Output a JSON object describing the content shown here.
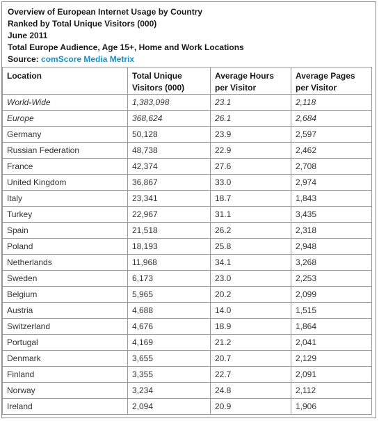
{
  "header": {
    "title": "Overview of European Internet Usage by Country",
    "subtitle": "Ranked by Total Unique Visitors (000)",
    "date": "June 2011",
    "audience": "Total Europe Audience, Age 15+, Home and Work Locations",
    "source_label": "Source: ",
    "source_name": "comScore Media Metrix"
  },
  "table": {
    "columns": [
      "Location",
      "Total Unique Visitors (000)",
      "Average Hours per Visitor",
      "Average Pages per Visitor"
    ],
    "rows": [
      {
        "location": "World-Wide",
        "visitors": "1,383,098",
        "hours": "23.1",
        "pages": "2,118",
        "italic": true
      },
      {
        "location": "Europe",
        "visitors": "368,624",
        "hours": "26.1",
        "pages": "2,684",
        "italic": true
      },
      {
        "location": "Germany",
        "visitors": "50,128",
        "hours": "23.9",
        "pages": "2,597"
      },
      {
        "location": "Russian Federation",
        "visitors": "48,738",
        "hours": "22.9",
        "pages": "2,462"
      },
      {
        "location": "France",
        "visitors": "42,374",
        "hours": "27.6",
        "pages": "2,708"
      },
      {
        "location": "United Kingdom",
        "visitors": "36,867",
        "hours": "33.0",
        "pages": "2,974"
      },
      {
        "location": "Italy",
        "visitors": "23,341",
        "hours": "18.7",
        "pages": "1,843"
      },
      {
        "location": "Turkey",
        "visitors": "22,967",
        "hours": "31.1",
        "pages": "3,435"
      },
      {
        "location": "Spain",
        "visitors": "21,518",
        "hours": "26.2",
        "pages": "2,318"
      },
      {
        "location": "Poland",
        "visitors": "18,193",
        "hours": "25.8",
        "pages": "2,948"
      },
      {
        "location": "Netherlands",
        "visitors": "11,968",
        "hours": "34.1",
        "pages": "3,268"
      },
      {
        "location": "Sweden",
        "visitors": "6,173",
        "hours": "23.0",
        "pages": "2,253"
      },
      {
        "location": "Belgium",
        "visitors": "5,965",
        "hours": "20.2",
        "pages": "2,099"
      },
      {
        "location": "Austria",
        "visitors": "4,688",
        "hours": "14.0",
        "pages": "1,515"
      },
      {
        "location": "Switzerland",
        "visitors": "4,676",
        "hours": "18.9",
        "pages": "1,864"
      },
      {
        "location": "Portugal",
        "visitors": "4,169",
        "hours": "21.2",
        "pages": "2,041"
      },
      {
        "location": "Denmark",
        "visitors": "3,655",
        "hours": "20.7",
        "pages": "2,129"
      },
      {
        "location": "Finland",
        "visitors": "3,355",
        "hours": "22.7",
        "pages": "2,091"
      },
      {
        "location": "Norway",
        "visitors": "3,234",
        "hours": "24.8",
        "pages": "2,112"
      },
      {
        "location": "Ireland",
        "visitors": "2,094",
        "hours": "20.9",
        "pages": "1,906"
      }
    ]
  },
  "colors": {
    "source_link": "#1a8fc4",
    "border": "#9a9a9a"
  }
}
